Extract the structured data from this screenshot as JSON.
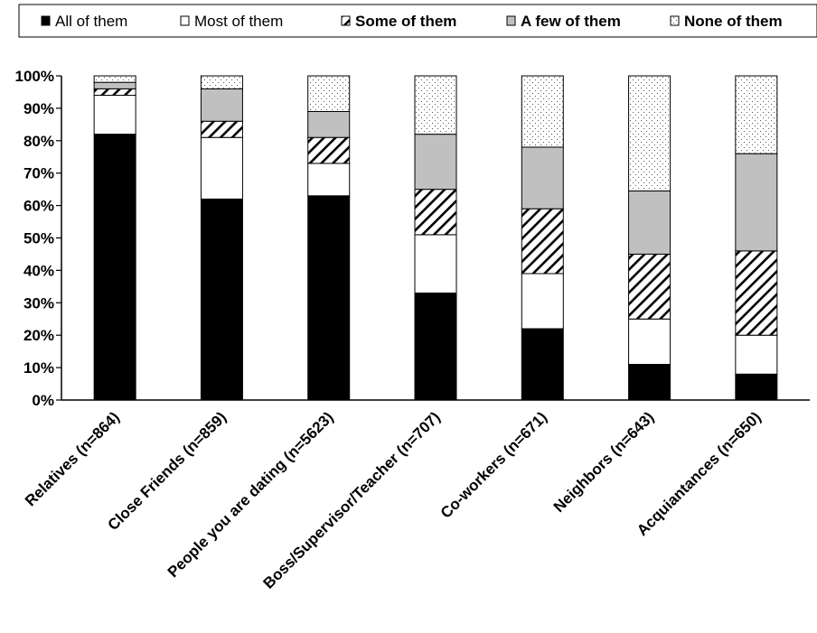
{
  "chart_data": {
    "type": "bar",
    "stacked": true,
    "percent": true,
    "categories": [
      "Relatives (n=864)",
      "Close Friends (n=859)",
      "People you are dating (n=5623)",
      "Boss/Supervisor/Teacher (n=707)",
      "Co-workers (n=671)",
      "Neighbors (n=643)",
      "Acquiantances (n=650)"
    ],
    "series": [
      {
        "name": "All of them",
        "fill": "solid-black",
        "color": "#000000",
        "values": [
          82,
          62,
          63,
          33,
          22,
          11,
          8
        ]
      },
      {
        "name": "Most of them",
        "fill": "white",
        "color": "#ffffff",
        "values": [
          12,
          19,
          10,
          18,
          17,
          14,
          12
        ]
      },
      {
        "name": "Some of them",
        "fill": "diagonal-hatch",
        "color": "#000000",
        "values": [
          2,
          5,
          8,
          14,
          20,
          20,
          26
        ]
      },
      {
        "name": "A few of them",
        "fill": "gray",
        "color": "#c0c0c0",
        "values": [
          2,
          10,
          8,
          17,
          19,
          19.5,
          30
        ]
      },
      {
        "name": "None of them",
        "fill": "dotted",
        "color": "#ffffff",
        "values": [
          2,
          4,
          11,
          18,
          22,
          35.5,
          24
        ]
      }
    ],
    "ylim": [
      0,
      100
    ],
    "yticks": [
      "0%",
      "10%",
      "20%",
      "30%",
      "40%",
      "50%",
      "60%",
      "70%",
      "80%",
      "90%",
      "100%"
    ],
    "xlabel": "",
    "ylabel": "",
    "title": "",
    "grid": false,
    "legend_position": "top"
  }
}
